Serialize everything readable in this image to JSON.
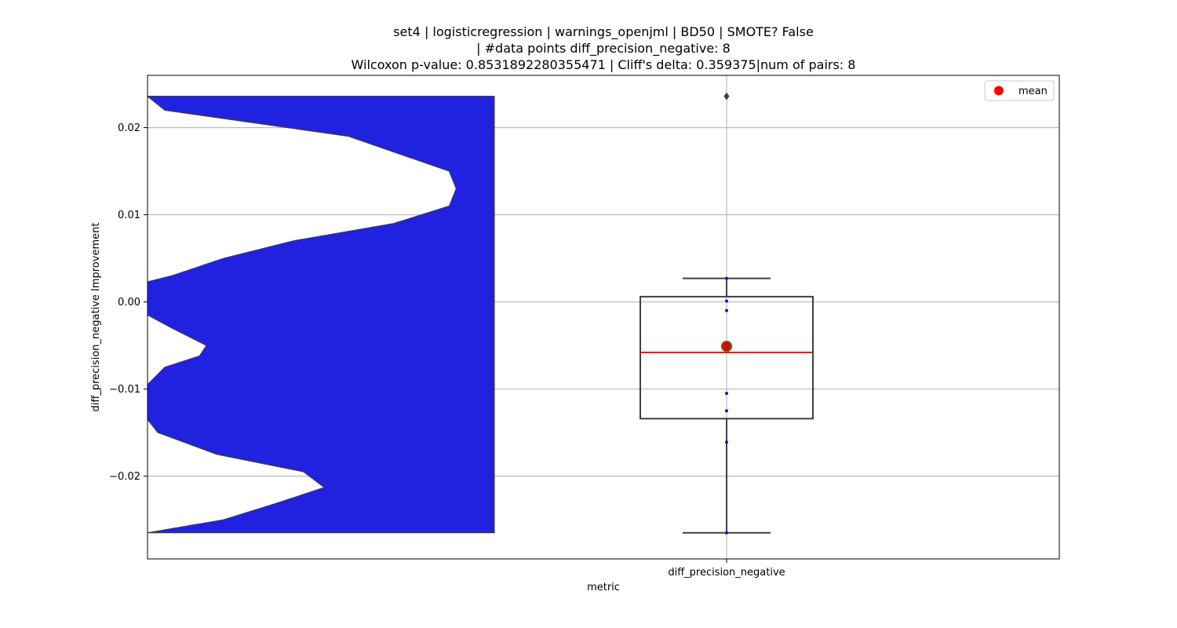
{
  "chart_data": {
    "type": "violin-box",
    "title_lines": [
      "set4 | logisticregression | warnings_openjml | BD50 | SMOTE? False",
      "| #data points diff_precision_negative: 8",
      "Wilcoxon p-value: 0.8531892280355471 | Cliff's delta: 0.359375|num of pairs: 8"
    ],
    "xlabel": "metric",
    "ylabel": "diff_precision_negative Improvement",
    "categories": [
      "diff_precision_negative"
    ],
    "ylim": [
      -0.0295,
      0.026
    ],
    "yticks": [
      {
        "value": 0.02,
        "label": "0.02"
      },
      {
        "value": 0.01,
        "label": "0.01"
      },
      {
        "value": 0.0,
        "label": "0.00"
      },
      {
        "value": -0.01,
        "label": "−0.01"
      },
      {
        "value": -0.02,
        "label": "−0.02"
      }
    ],
    "grid": true,
    "legend": {
      "position": "top-right",
      "entries": [
        {
          "label": "mean",
          "color": "#ff0000"
        }
      ]
    },
    "points": [
      0.0236,
      0.0027,
      0.0001,
      -0.001,
      -0.0105,
      -0.0125,
      -0.0161,
      -0.0265
    ],
    "box": {
      "q1": -0.0134,
      "median": -0.0058,
      "q3": 0.0006,
      "whisker_low": -0.0265,
      "whisker_high": 0.0027,
      "outliers": [
        0.0236
      ]
    },
    "mean": -0.0051,
    "violin": {
      "color": "#2121e0",
      "y": [
        0.0236,
        0.022,
        0.019,
        0.015,
        0.013,
        0.011,
        0.009,
        0.007,
        0.005,
        0.003,
        0.0023,
        0.001,
        0.0,
        -0.0015,
        -0.003,
        -0.005,
        -0.0062,
        -0.0075,
        -0.0095,
        -0.011,
        -0.0122,
        -0.0135,
        -0.015,
        -0.0175,
        -0.0195,
        -0.0213,
        -0.023,
        -0.025,
        -0.0265
      ],
      "density": [
        0.0,
        0.05,
        0.58,
        0.87,
        0.89,
        0.87,
        0.71,
        0.42,
        0.22,
        0.07,
        0.0,
        0.0,
        0.0,
        0.0,
        0.07,
        0.17,
        0.15,
        0.05,
        0.0,
        0.0,
        0.0,
        0.0,
        0.03,
        0.2,
        0.45,
        0.51,
        0.38,
        0.22,
        0.0
      ]
    },
    "colors": {
      "box_edge": "#404040",
      "median": "#ff0000",
      "mean_fill": "#e00000",
      "mean_edge": "#3c8c3c",
      "points": "#1010d0",
      "grid": "#b0b0b0"
    }
  }
}
